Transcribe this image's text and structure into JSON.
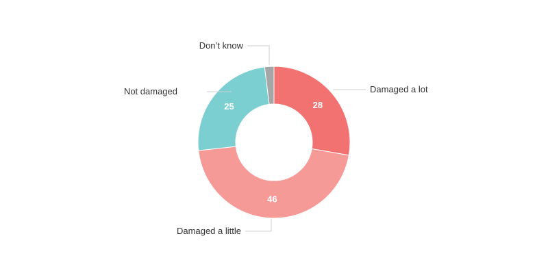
{
  "chart_data": {
    "type": "pie",
    "title": "",
    "donut": true,
    "legend": "none",
    "slices": [
      {
        "label": "Damaged a lot",
        "value": 28,
        "display": "28",
        "color": "#f27272"
      },
      {
        "label": "Damaged a little",
        "value": 46,
        "display": "46",
        "color": "#f69a98"
      },
      {
        "label": "Not damaged",
        "value": 25,
        "display": "25",
        "color": "#7bcfd1"
      },
      {
        "label": "Don’t know",
        "value": 2,
        "display": "",
        "color": "#a6a6a6"
      }
    ]
  }
}
